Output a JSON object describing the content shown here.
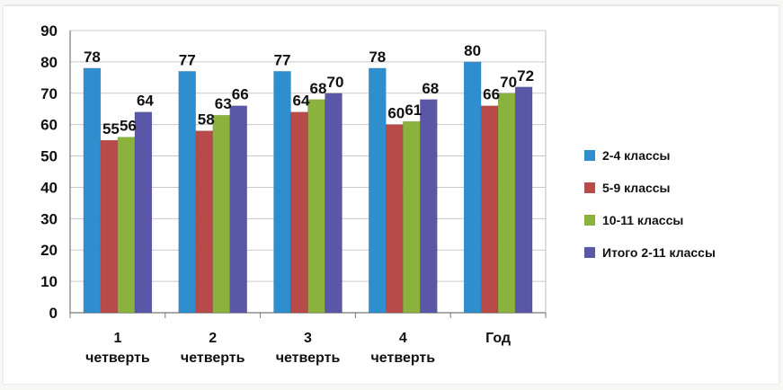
{
  "chart_data": {
    "type": "bar",
    "categories": [
      [
        "1",
        "четверть"
      ],
      [
        "2",
        "четверть"
      ],
      [
        "3",
        "четверть"
      ],
      [
        "4",
        "четверть"
      ],
      [
        "Год"
      ]
    ],
    "series": [
      {
        "name": "2-4 классы",
        "values": [
          78,
          77,
          77,
          78,
          80
        ],
        "color": "#2f8fce"
      },
      {
        "name": "5-9 классы",
        "values": [
          55,
          58,
          64,
          60,
          66
        ],
        "color": "#b84a4a"
      },
      {
        "name": "10-11 классы",
        "values": [
          56,
          63,
          68,
          61,
          70
        ],
        "color": "#8bb23c"
      },
      {
        "name": "Итого 2-11 классы",
        "values": [
          64,
          66,
          70,
          68,
          72
        ],
        "color": "#5b57a8"
      }
    ],
    "ylim": [
      0,
      90
    ],
    "yticks": [
      0,
      10,
      20,
      30,
      40,
      50,
      60,
      70,
      80,
      90
    ],
    "grid": true,
    "legend_position": "right"
  }
}
